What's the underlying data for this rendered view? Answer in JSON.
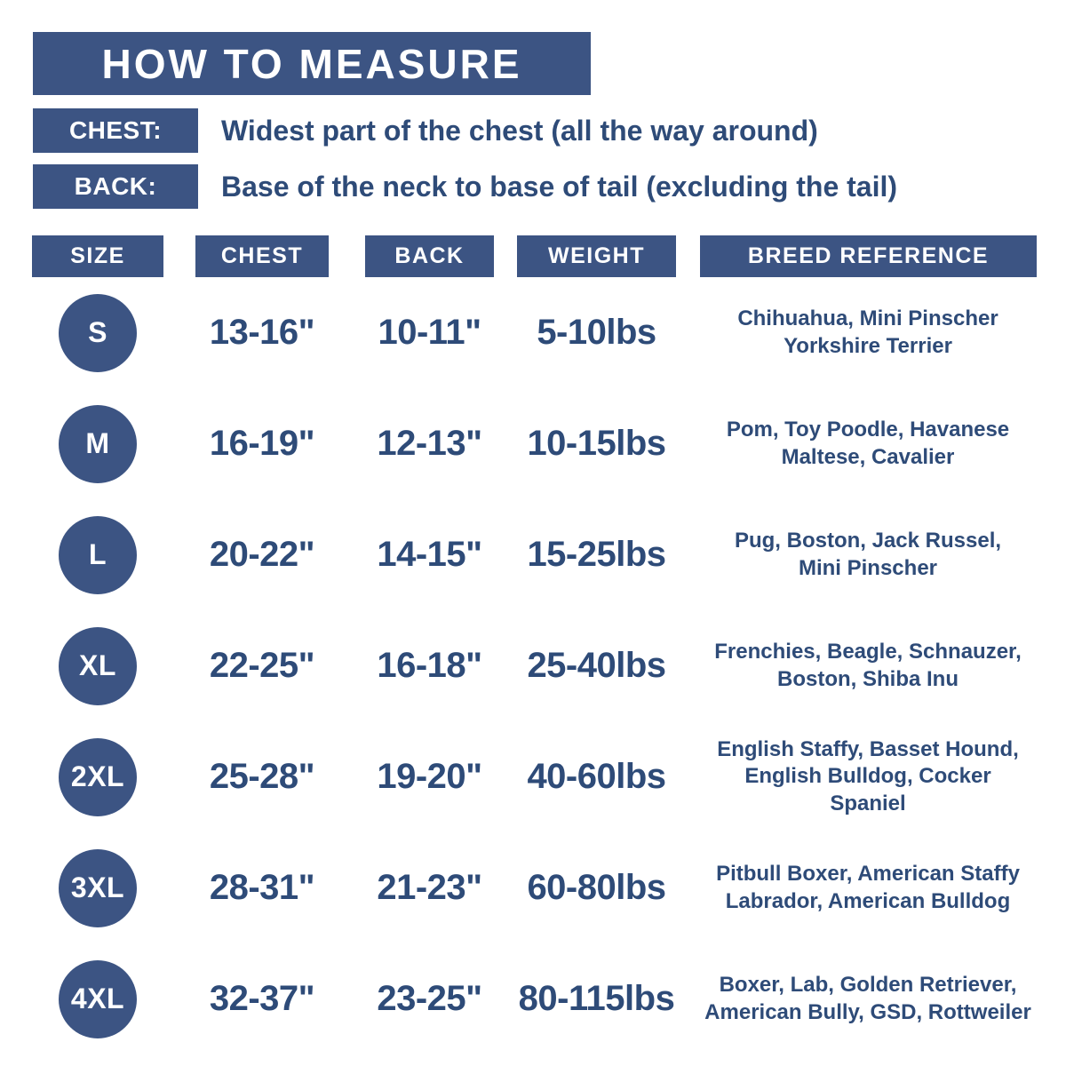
{
  "colors": {
    "navy_box": "#3c5483",
    "navy_text": "#2e4b78",
    "background": "#ffffff"
  },
  "title": "HOW TO MEASURE",
  "measure_guide": [
    {
      "label": "CHEST:",
      "description": "Widest part of the chest (all the way around)"
    },
    {
      "label": "BACK:",
      "description": "Base of the neck to base of tail (excluding the tail)"
    }
  ],
  "table": {
    "headers": [
      "SIZE",
      "CHEST",
      "BACK",
      "WEIGHT",
      "BREED REFERENCE"
    ],
    "rows": [
      {
        "size": "S",
        "chest": "13-16\"",
        "back": "10-11\"",
        "weight": "5-10lbs",
        "breeds": "Chihuahua, Mini Pinscher\nYorkshire Terrier"
      },
      {
        "size": "M",
        "chest": "16-19\"",
        "back": "12-13\"",
        "weight": "10-15lbs",
        "breeds": "Pom, Toy Poodle, Havanese\nMaltese, Cavalier"
      },
      {
        "size": "L",
        "chest": "20-22\"",
        "back": "14-15\"",
        "weight": "15-25lbs",
        "breeds": "Pug, Boston, Jack Russel,\nMini Pinscher"
      },
      {
        "size": "XL",
        "chest": "22-25\"",
        "back": "16-18\"",
        "weight": "25-40lbs",
        "breeds": "Frenchies, Beagle, Schnauzer,\nBoston, Shiba Inu"
      },
      {
        "size": "2XL",
        "chest": "25-28\"",
        "back": "19-20\"",
        "weight": "40-60lbs",
        "breeds": "English Staffy, Basset Hound,\nEnglish Bulldog, Cocker\nSpaniel"
      },
      {
        "size": "3XL",
        "chest": "28-31\"",
        "back": "21-23\"",
        "weight": "60-80lbs",
        "breeds": "Pitbull Boxer, American Staffy\nLabrador, American Bulldog"
      },
      {
        "size": "4XL",
        "chest": "32-37\"",
        "back": "23-25\"",
        "weight": "80-115lbs",
        "breeds": "Boxer, Lab, Golden Retriever,\nAmerican Bully, GSD, Rottweiler"
      }
    ]
  },
  "chart_data": {
    "type": "table",
    "title": "HOW TO MEASURE",
    "notes": [
      "CHEST: Widest part of the chest (all the way around)",
      "BACK: Base of the neck to base of tail (excluding the tail)"
    ],
    "columns": [
      "SIZE",
      "CHEST",
      "BACK",
      "WEIGHT",
      "BREED REFERENCE"
    ],
    "rows": [
      [
        "S",
        "13-16\"",
        "10-11\"",
        "5-10lbs",
        "Chihuahua, Mini Pinscher Yorkshire Terrier"
      ],
      [
        "M",
        "16-19\"",
        "12-13\"",
        "10-15lbs",
        "Pom, Toy Poodle, Havanese Maltese, Cavalier"
      ],
      [
        "L",
        "20-22\"",
        "14-15\"",
        "15-25lbs",
        "Pug, Boston, Jack Russel, Mini Pinscher"
      ],
      [
        "XL",
        "22-25\"",
        "16-18\"",
        "25-40lbs",
        "Frenchies, Beagle, Schnauzer, Boston, Shiba Inu"
      ],
      [
        "2XL",
        "25-28\"",
        "19-20\"",
        "40-60lbs",
        "English Staffy, Basset Hound, English Bulldog, Cocker Spaniel"
      ],
      [
        "3XL",
        "28-31\"",
        "21-23\"",
        "60-80lbs",
        "Pitbull Boxer, American Staffy Labrador, American Bulldog"
      ],
      [
        "4XL",
        "32-37\"",
        "23-25\"",
        "80-115lbs",
        "Boxer, Lab, Golden Retriever, American Bully, GSD, Rottweiler"
      ]
    ]
  }
}
